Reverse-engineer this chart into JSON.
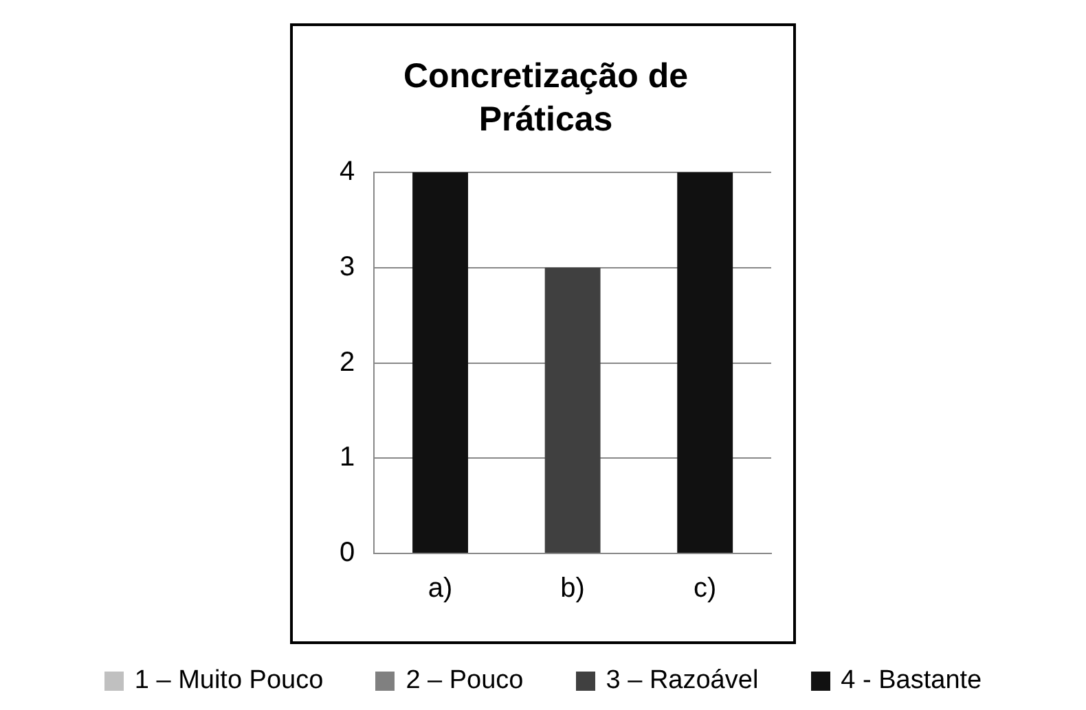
{
  "chart_data": {
    "type": "bar",
    "title": "Concretização de Práticas",
    "categories": [
      "a)",
      "b)",
      "c)"
    ],
    "series": [
      {
        "name": "1 – Muito Pouco",
        "color": "#c0c0c0",
        "values": [
          null,
          null,
          null
        ]
      },
      {
        "name": "2 – Pouco",
        "color": "#808080",
        "values": [
          null,
          null,
          null
        ]
      },
      {
        "name": "3 – Razoável",
        "color": "#404040",
        "values": [
          null,
          3,
          null
        ]
      },
      {
        "name": "4 - Bastante",
        "color": "#111111",
        "values": [
          4,
          null,
          4
        ]
      }
    ],
    "stacked": true,
    "ylim": [
      0,
      4
    ],
    "yticks": [
      0,
      1,
      2,
      3,
      4
    ],
    "grid": "y",
    "legend": "bottom"
  }
}
